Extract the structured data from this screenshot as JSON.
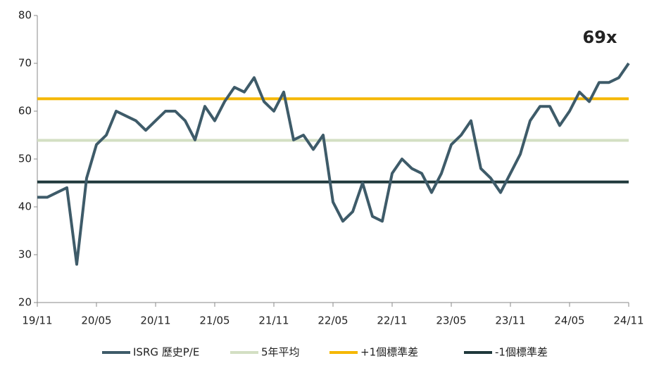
{
  "chart_data": {
    "type": "line",
    "annotation": "69x",
    "annotation_color": "#e60000",
    "categories": [
      "19/11",
      null,
      null,
      null,
      null,
      null,
      "20/05",
      null,
      null,
      null,
      null,
      null,
      "20/11",
      null,
      null,
      null,
      null,
      null,
      "21/05",
      null,
      null,
      null,
      null,
      null,
      "21/11",
      null,
      null,
      null,
      null,
      null,
      "22/05",
      null,
      null,
      null,
      null,
      null,
      "22/11",
      null,
      null,
      null,
      null,
      null,
      "23/05",
      null,
      null,
      null,
      null,
      null,
      "23/11",
      null,
      null,
      null,
      null,
      null,
      "24/05",
      null,
      null,
      null,
      null,
      null,
      "24/11"
    ],
    "series": [
      {
        "name": "ISRG 歷史P/E",
        "color": "#3e5b69",
        "values": [
          42,
          42,
          43,
          44,
          28,
          46,
          53,
          55,
          60,
          59,
          58,
          56,
          58,
          60,
          60,
          58,
          54,
          61,
          58,
          62,
          65,
          64,
          67,
          62,
          60,
          64,
          54,
          55,
          52,
          55,
          41,
          37,
          39,
          45,
          38,
          37,
          47,
          50,
          48,
          47,
          43,
          47,
          53,
          55,
          58,
          48,
          46,
          43,
          47,
          51,
          58,
          61,
          61,
          57,
          60,
          64,
          62,
          66,
          66,
          67,
          70
        ]
      }
    ],
    "hlines": [
      {
        "name": "5年平均",
        "color": "#d3dfc3",
        "value": 53.9
      },
      {
        "name": "+1個標準差",
        "color": "#f5b700",
        "value": 62.6
      },
      {
        "name": "-1個標準差",
        "color": "#1f383b",
        "value": 45.2
      }
    ],
    "ylim": [
      20,
      80
    ],
    "yticks": [
      20,
      30,
      40,
      50,
      60,
      70,
      80
    ],
    "legend": "bottom"
  }
}
